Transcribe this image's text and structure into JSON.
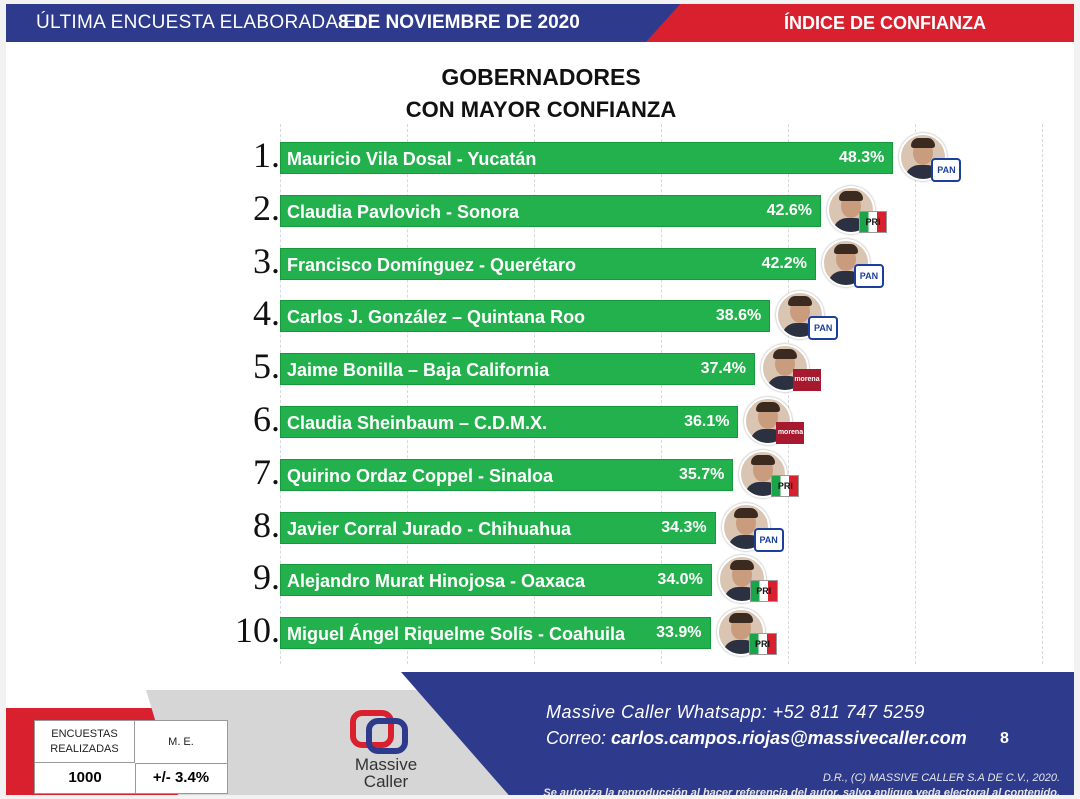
{
  "header": {
    "prefix": "ÚLTIMA ENCUESTA ELABORADA EL",
    "date": "8 DE NOVIEMBRE DE 2020",
    "section": "ÍNDICE DE CONFIANZA"
  },
  "chart_data": {
    "type": "bar",
    "orientation": "horizontal",
    "title": "GOBERNADORES",
    "subtitle": "CON MAYOR CONFIANZA",
    "unit": "%",
    "xlim": [
      0,
      55
    ],
    "grid": true,
    "ranks": [
      "1.",
      "2.",
      "3.",
      "4.",
      "5.",
      "6.",
      "7.",
      "8.",
      "9.",
      "10."
    ],
    "categories": [
      "Mauricio Vila Dosal - Yucatán",
      "Claudia Pavlovich - Sonora",
      "Francisco Domínguez - Querétaro",
      "Carlos J. González – Quintana Roo",
      "Jaime Bonilla – Baja California",
      "Claudia Sheinbaum – C.D.M.X.",
      "Quirino Ordaz Coppel - Sinaloa",
      "Javier Corral Jurado - Chihuahua",
      "Alejandro Murat Hinojosa - Oaxaca",
      "Miguel Ángel Riquelme Solís - Coahuila"
    ],
    "values": [
      48.3,
      42.6,
      42.2,
      38.6,
      37.4,
      36.1,
      35.7,
      34.3,
      34.0,
      33.9
    ],
    "value_labels": [
      "48.3%",
      "42.6%",
      "42.2%",
      "38.6%",
      "37.4%",
      "36.1%",
      "35.7%",
      "34.3%",
      "34.0%",
      "33.9%"
    ],
    "parties": [
      "PAN",
      "PRI",
      "PAN",
      "PAN",
      "morena",
      "morena",
      "PRI",
      "PAN",
      "PRI",
      "PRI"
    ],
    "bar_color": "#22b14c"
  },
  "footer": {
    "stats_label_1": "ENCUESTAS REALIZADAS",
    "stats_label_2": "M. E.",
    "stats_value_1": "1000",
    "stats_value_2": "+/- 3.4%",
    "logo_line1": "Massive",
    "logo_line2": "Caller",
    "whatsapp": "Massive Caller Whatsapp: +52   811 747 5259",
    "email_label": "Correo:",
    "email": "carlos.campos.riojas@massivecaller.com",
    "page": "8",
    "legal1": "D.R., (C) MASSIVE CALLER S.A DE C.V., 2020.",
    "legal2": "Se autoriza la reproducción al hacer referencia del autor, salvo aplique veda electoral al contenido."
  },
  "colors": {
    "blue": "#2e3a8c",
    "red": "#d8202f",
    "green": "#22b14c"
  }
}
